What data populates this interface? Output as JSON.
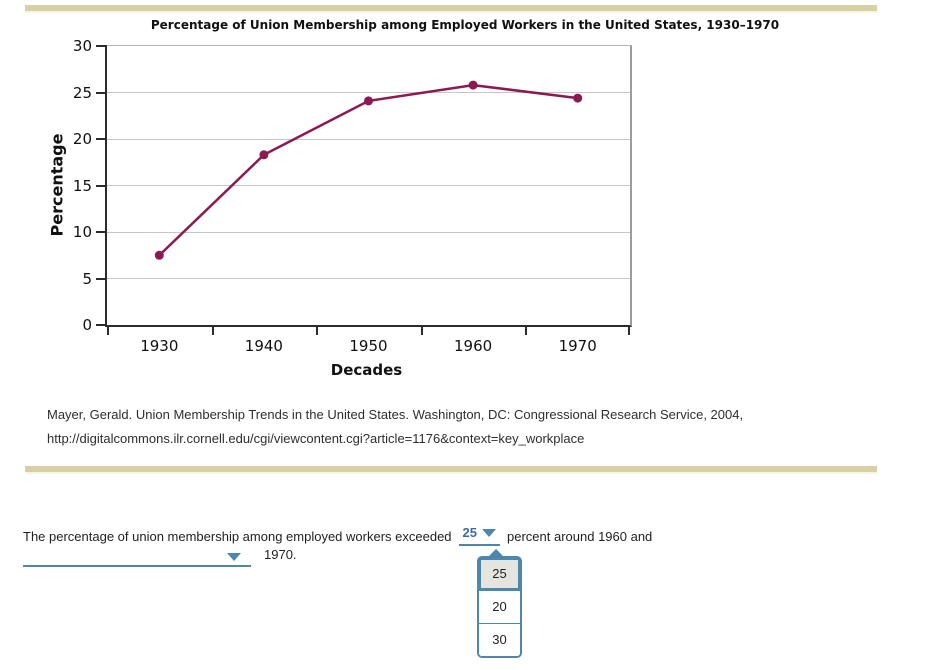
{
  "colors": {
    "bar": "#d6d0a4",
    "accent_blue": "#4f86ad",
    "link_blue": "#3b6e9e",
    "line": "#8b1a51"
  },
  "chart_data": {
    "type": "line",
    "title": "Percentage of Union Membership among Employed Workers in the United States, 1930–1970",
    "xlabel": "Decades",
    "ylabel": "Percentage",
    "categories": [
      "1930",
      "1940",
      "1950",
      "1960",
      "1970"
    ],
    "values": [
      7.5,
      18.3,
      24.1,
      25.8,
      24.4
    ],
    "ylim": [
      0,
      30
    ],
    "ytick_step": 5,
    "grid": true,
    "legend": false
  },
  "citation": {
    "line1": "Mayer, Gerald. Union Membership Trends in the United States. Washington, DC: Congressional Research Service, 2004,",
    "line2": "http://digitalcommons.ilr.cornell.edu/cgi/viewcontent.cgi?article=1176&context=key_workplace"
  },
  "question": {
    "text_before": "The percentage of union membership among employed workers exceeded",
    "dropdown1_value": "25",
    "text_after": "percent around 1960 and",
    "text_end": "1970."
  },
  "dropdown_menu": {
    "selected": "25",
    "options": [
      "25",
      "20",
      "30"
    ]
  }
}
